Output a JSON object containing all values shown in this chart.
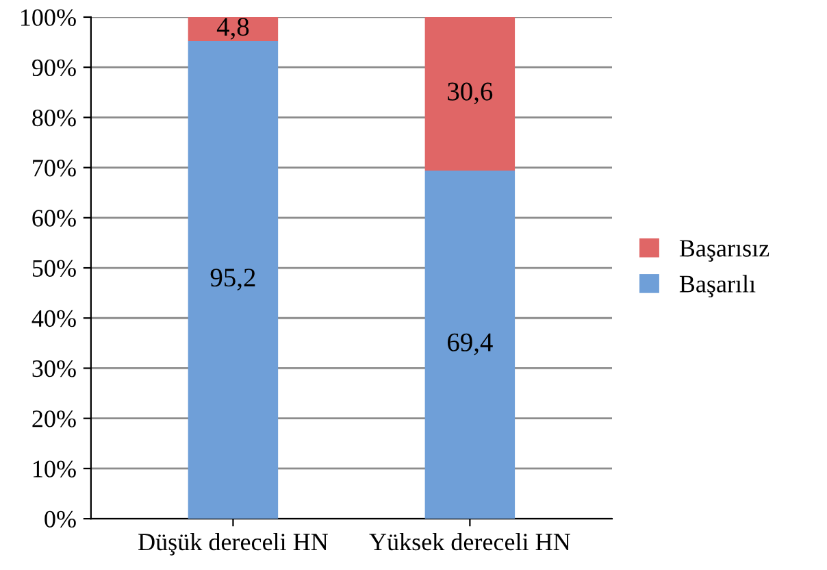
{
  "chart_data": {
    "type": "bar",
    "stacked": true,
    "categories": [
      "Düşük dereceli HN",
      "Yüksek dereceli HN"
    ],
    "series": [
      {
        "name": "Başarılı",
        "color": "#6f9fd8",
        "values": [
          95.2,
          69.4
        ],
        "value_labels": [
          "95,2",
          "69,4"
        ]
      },
      {
        "name": "Başarısız",
        "color": "#e06666",
        "values": [
          4.8,
          30.6
        ],
        "value_labels": [
          "4,8",
          "30,6"
        ]
      }
    ],
    "ylim": [
      0,
      100
    ],
    "yticks": [
      {
        "value": 0,
        "label": "0%"
      },
      {
        "value": 10,
        "label": "10%"
      },
      {
        "value": 20,
        "label": "20%"
      },
      {
        "value": 30,
        "label": "30%"
      },
      {
        "value": 40,
        "label": "40%"
      },
      {
        "value": 50,
        "label": "50%"
      },
      {
        "value": 60,
        "label": "60%"
      },
      {
        "value": 70,
        "label": "70%"
      },
      {
        "value": 80,
        "label": "80%"
      },
      {
        "value": 90,
        "label": "90%"
      },
      {
        "value": 100,
        "label": "100%"
      }
    ],
    "grid": "y",
    "legend": "right"
  }
}
